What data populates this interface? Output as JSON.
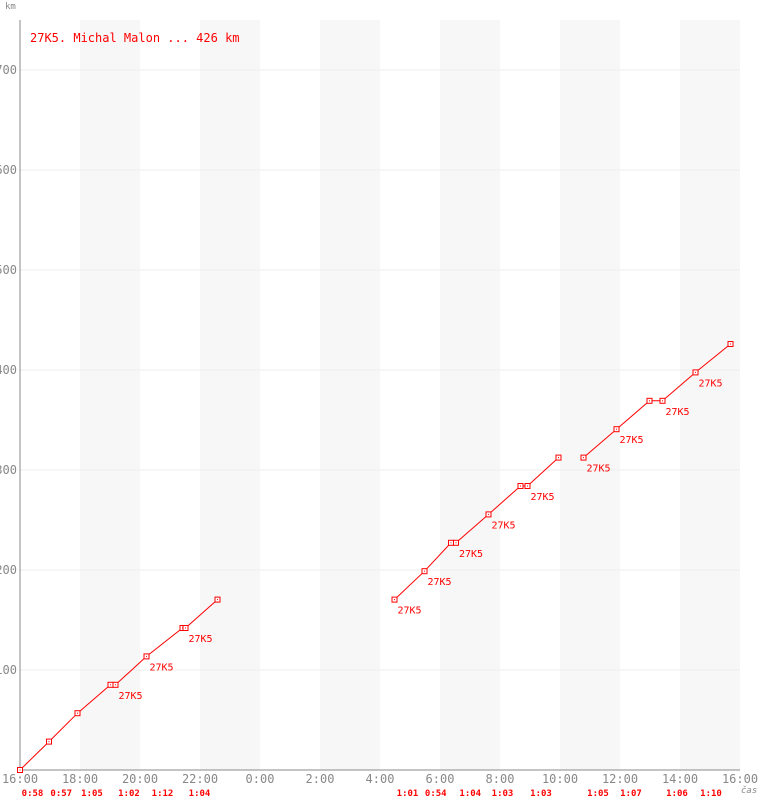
{
  "chart_data": {
    "type": "line",
    "title": "27K5. Michal Malon ... 426 km",
    "ylabel": "km",
    "xlabel": "čas",
    "xlim": [
      "16:00",
      "16:00 (+1 day)"
    ],
    "ylim": [
      0,
      750
    ],
    "x_ticks": [
      "16:00",
      "18:00",
      "20:00",
      "22:00",
      "0:00",
      "2:00",
      "4:00",
      "6:00",
      "8:00",
      "10:00",
      "12:00",
      "14:00",
      "16:00"
    ],
    "y_ticks": [
      100,
      200,
      300,
      400,
      500,
      600,
      700
    ],
    "grid": true,
    "color": "#ff0000",
    "shaded_bands": [
      [
        "18:00",
        "20:00"
      ],
      [
        "22:00",
        "0:00"
      ],
      [
        "2:00",
        "4:00"
      ],
      [
        "6:00",
        "8:00"
      ],
      [
        "10:00",
        "12:00"
      ],
      [
        "14:00",
        "16:00"
      ]
    ],
    "segments": [
      [
        {
          "t": "16:00",
          "km": 0,
          "label": ""
        },
        {
          "t": "16:58",
          "km": 28.4,
          "label": ""
        },
        {
          "t": "17:55",
          "km": 56.8,
          "label": ""
        },
        {
          "t": "19:01",
          "km": 85.2,
          "label": ""
        },
        {
          "t": "19:11",
          "km": 85.2,
          "label": "27K5"
        },
        {
          "t": "20:13",
          "km": 113.6,
          "label": "27K5"
        },
        {
          "t": "21:25",
          "km": 142,
          "label": ""
        },
        {
          "t": "21:31",
          "km": 142,
          "label": "27K5"
        },
        {
          "t": "22:35",
          "km": 170.4,
          "label": ""
        }
      ],
      [
        {
          "t": "4:29",
          "km": 170.4,
          "label": "27K5"
        },
        {
          "t": "5:29",
          "km": 198.8,
          "label": "27K5"
        },
        {
          "t": "6:22",
          "km": 227.2,
          "label": ""
        },
        {
          "t": "6:32",
          "km": 227.2,
          "label": "27K5"
        },
        {
          "t": "7:37",
          "km": 255.6,
          "label": "27K5"
        },
        {
          "t": "8:41",
          "km": 284,
          "label": ""
        },
        {
          "t": "8:55",
          "km": 284,
          "label": "27K5"
        },
        {
          "t": "9:57",
          "km": 312.4,
          "label": ""
        }
      ],
      [
        {
          "t": "10:47",
          "km": 312.4,
          "label": "27K5"
        },
        {
          "t": "11:53",
          "km": 340.8,
          "label": "27K5"
        },
        {
          "t": "12:59",
          "km": 369.2,
          "label": ""
        },
        {
          "t": "13:25",
          "km": 369.2,
          "label": "27K5"
        },
        {
          "t": "14:31",
          "km": 397.6,
          "label": "27K5"
        },
        {
          "t": "15:41",
          "km": 426,
          "label": ""
        }
      ]
    ],
    "lap_times": [
      {
        "from": "16:00",
        "to": "16:58",
        "time": "0:58"
      },
      {
        "from": "16:58",
        "to": "17:55",
        "time": "0:57"
      },
      {
        "from": "17:55",
        "to": "19:01",
        "time": "1:05"
      },
      {
        "from": "19:11",
        "to": "20:13",
        "time": "1:02"
      },
      {
        "from": "20:13",
        "to": "21:25",
        "time": "1:12"
      },
      {
        "from": "21:31",
        "to": "22:35",
        "time": "1:04"
      },
      {
        "from": "4:29",
        "to": "5:29",
        "time": "1:01"
      },
      {
        "from": "5:29",
        "to": "6:22",
        "time": "0:54"
      },
      {
        "from": "6:32",
        "to": "7:37",
        "time": "1:04"
      },
      {
        "from": "7:37",
        "to": "8:41",
        "time": "1:03"
      },
      {
        "from": "8:55",
        "to": "9:57",
        "time": "1:03"
      },
      {
        "from": "10:47",
        "to": "11:53",
        "time": "1:05"
      },
      {
        "from": "11:53",
        "to": "12:59",
        "time": "1:07"
      },
      {
        "from": "13:25",
        "to": "14:31",
        "time": "1:06"
      },
      {
        "from": "14:31",
        "to": "15:41",
        "time": "1:10"
      }
    ]
  }
}
